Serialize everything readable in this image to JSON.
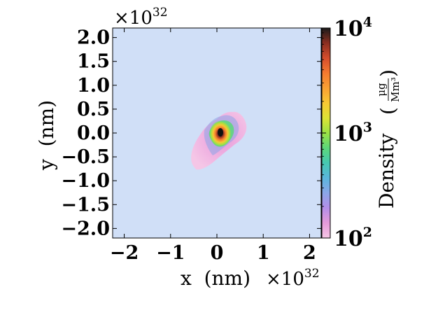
{
  "chart_data": {
    "type": "heatmap",
    "xlabel": "x  (nm)",
    "ylabel": "y  (nm)",
    "x_multiplier": {
      "base": "×10",
      "exp": "32"
    },
    "y_multiplier": {
      "base": "×10",
      "exp": "32"
    },
    "xlim": [
      -2.25,
      2.25
    ],
    "ylim": [
      -2.2,
      2.2
    ],
    "x_ticks": [
      -2,
      -1,
      0,
      1,
      2
    ],
    "x_tick_labels": [
      "−2",
      "−1",
      "0",
      "1",
      "2"
    ],
    "y_ticks": [
      2.0,
      1.5,
      1.0,
      0.5,
      0.0,
      -0.5,
      -1.0,
      -1.5,
      -2.0
    ],
    "y_tick_labels": [
      "2.0",
      "1.5",
      "1.0",
      "0.5",
      "0.0",
      "−0.5",
      "−1.0",
      "−1.5",
      "−2.0"
    ],
    "background_color": "#d0dff7",
    "colorbar": {
      "label": "Density",
      "unit_numerator": "μg",
      "unit_denominator": "Mm³",
      "scale": "log",
      "range": [
        100,
        10000
      ],
      "tick_labels": [
        {
          "base": "10",
          "exp": "4"
        },
        {
          "base": "10",
          "exp": "3"
        },
        {
          "base": "10",
          "exp": "2"
        }
      ],
      "colors": [
        "#f5c6e6",
        "#e59ad9",
        "#b48ee8",
        "#8ba6e8",
        "#5ab6dc",
        "#46c9b2",
        "#5cd77a",
        "#9be245",
        "#dde335",
        "#f8c834",
        "#f9a033",
        "#f47a30",
        "#d54d2c",
        "#8a2e20",
        "#1a1a1a"
      ]
    },
    "features": [
      {
        "kind": "cloud",
        "x_range": [
          -0.55,
          0.65
        ],
        "y_range": [
          -0.8,
          0.45
        ],
        "min_density": 100,
        "max_density": 10000
      },
      {
        "kind": "core",
        "x": 0.05,
        "y": -0.05,
        "density": 10000
      }
    ]
  }
}
